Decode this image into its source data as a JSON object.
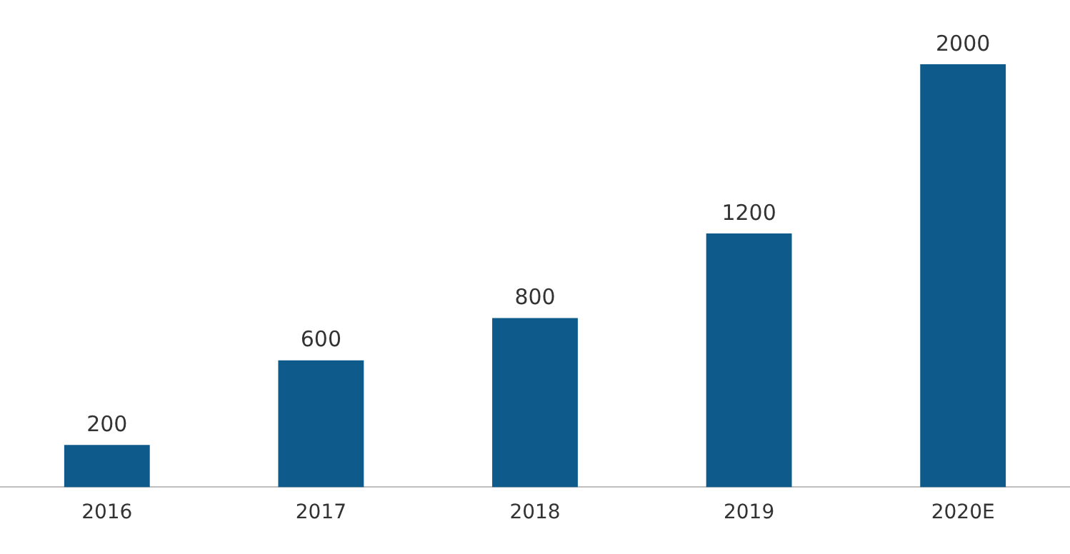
{
  "chart_data": {
    "type": "bar",
    "categories": [
      "2016",
      "2017",
      "2018",
      "2019",
      "2020E"
    ],
    "values": [
      200,
      600,
      800,
      1200,
      2000
    ],
    "color": "#0e5a8a",
    "data_labels": true,
    "tick_labels": "x",
    "grid": false,
    "legend": false
  }
}
